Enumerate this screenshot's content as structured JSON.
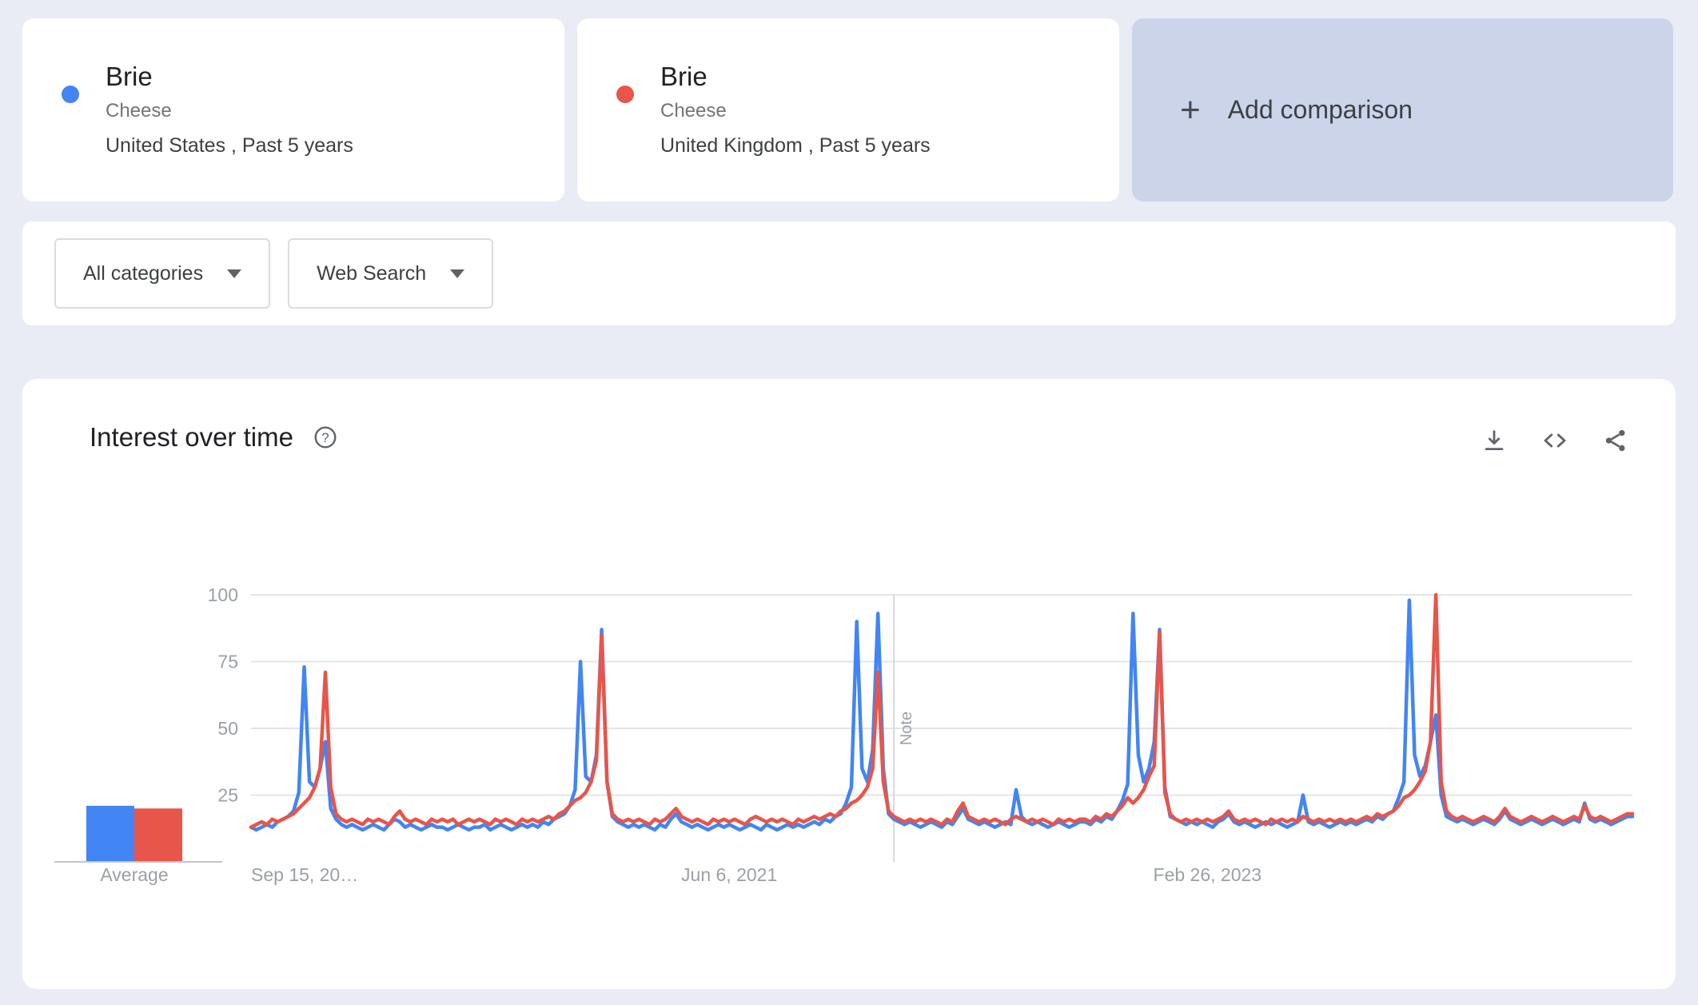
{
  "terms": [
    {
      "keyword": "Brie",
      "type": "Cheese",
      "scope": "United States , Past 5 years",
      "color": "#4285f4"
    },
    {
      "keyword": "Brie",
      "type": "Cheese",
      "scope": "United Kingdom , Past 5 years",
      "color": "#e8554a"
    }
  ],
  "add_comparison": {
    "plus": "+",
    "label": "Add comparison"
  },
  "filters": {
    "category": "All categories",
    "search_type": "Web Search"
  },
  "chart_card": {
    "title": "Interest over time",
    "icons": [
      "help-icon",
      "download-icon",
      "embed-icon",
      "share-icon"
    ]
  },
  "chart_data": {
    "type": "line",
    "title": "Interest over time",
    "x_unit": "week",
    "x_tick_labels": [
      "Sep 15, 20…",
      "Jun 6, 2021",
      "Feb 26, 2023"
    ],
    "x_tick_weeks": [
      0,
      90,
      180
    ],
    "y_ticks": [
      25,
      50,
      75,
      100
    ],
    "ylim": [
      0,
      100
    ],
    "grid": true,
    "note_week": 121,
    "note_label": "Note",
    "averages": {
      "label": "Average",
      "values": [
        {
          "name": "Brie (United States)",
          "color": "#4285f4",
          "value": 21
        },
        {
          "name": "Brie (United Kingdom)",
          "color": "#e8554a",
          "value": 20
        }
      ]
    },
    "series": [
      {
        "name": "Brie (United States)",
        "color": "#4285f4",
        "values": [
          13,
          12,
          13,
          14,
          13,
          15,
          16,
          17,
          19,
          26,
          73,
          30,
          28,
          35,
          45,
          20,
          16,
          14,
          13,
          14,
          13,
          12,
          13,
          14,
          13,
          12,
          14,
          16,
          15,
          13,
          14,
          13,
          12,
          13,
          14,
          13,
          13,
          12,
          13,
          14,
          13,
          12,
          13,
          13,
          14,
          12,
          13,
          14,
          13,
          12,
          13,
          14,
          13,
          14,
          13,
          15,
          14,
          16,
          17,
          18,
          21,
          27,
          75,
          32,
          30,
          40,
          87,
          30,
          17,
          15,
          14,
          13,
          14,
          13,
          14,
          13,
          12,
          14,
          13,
          16,
          18,
          15,
          14,
          13,
          14,
          13,
          12,
          13,
          14,
          13,
          14,
          13,
          12,
          13,
          14,
          13,
          12,
          14,
          13,
          12,
          13,
          14,
          13,
          14,
          13,
          14,
          15,
          14,
          16,
          15,
          17,
          18,
          22,
          28,
          90,
          35,
          30,
          42,
          93,
          35,
          18,
          16,
          15,
          14,
          15,
          14,
          13,
          14,
          15,
          14,
          13,
          15,
          14,
          17,
          20,
          16,
          15,
          14,
          15,
          14,
          13,
          14,
          15,
          14,
          27,
          17,
          15,
          14,
          15,
          14,
          13,
          14,
          15,
          14,
          13,
          14,
          15,
          15,
          14,
          16,
          15,
          17,
          16,
          19,
          23,
          29,
          93,
          40,
          30,
          35,
          45,
          87,
          28,
          17,
          16,
          15,
          14,
          15,
          14,
          15,
          14,
          13,
          15,
          16,
          18,
          15,
          14,
          15,
          14,
          13,
          14,
          15,
          14,
          15,
          14,
          13,
          14,
          15,
          25,
          15,
          14,
          15,
          14,
          13,
          14,
          15,
          14,
          15,
          14,
          15,
          16,
          15,
          17,
          16,
          18,
          19,
          24,
          30,
          98,
          40,
          32,
          36,
          45,
          55,
          25,
          17,
          16,
          15,
          16,
          15,
          14,
          15,
          16,
          15,
          14,
          16,
          19,
          16,
          15,
          14,
          15,
          16,
          15,
          14,
          15,
          16,
          15,
          14,
          15,
          16,
          15,
          22,
          16,
          15,
          16,
          15,
          14,
          15,
          16,
          17,
          17
        ]
      },
      {
        "name": "Brie (United Kingdom)",
        "color": "#e8554a",
        "values": [
          13,
          14,
          15,
          14,
          16,
          15,
          16,
          17,
          18,
          20,
          22,
          24,
          28,
          35,
          71,
          28,
          18,
          16,
          15,
          16,
          15,
          14,
          16,
          15,
          16,
          15,
          14,
          17,
          19,
          16,
          15,
          16,
          15,
          14,
          16,
          15,
          16,
          15,
          16,
          14,
          15,
          16,
          15,
          16,
          15,
          14,
          16,
          15,
          16,
          15,
          14,
          16,
          15,
          16,
          15,
          16,
          17,
          16,
          18,
          19,
          21,
          23,
          24,
          26,
          30,
          38,
          85,
          30,
          18,
          16,
          15,
          16,
          15,
          16,
          15,
          14,
          16,
          15,
          16,
          18,
          20,
          17,
          16,
          15,
          16,
          15,
          14,
          16,
          15,
          16,
          15,
          16,
          15,
          14,
          16,
          17,
          16,
          15,
          16,
          15,
          16,
          15,
          14,
          16,
          15,
          16,
          17,
          16,
          17,
          18,
          17,
          19,
          20,
          22,
          23,
          25,
          28,
          35,
          71,
          30,
          19,
          17,
          16,
          15,
          16,
          15,
          16,
          15,
          16,
          15,
          14,
          16,
          15,
          19,
          22,
          17,
          16,
          15,
          16,
          15,
          16,
          15,
          14,
          16,
          17,
          16,
          15,
          16,
          15,
          16,
          15,
          14,
          16,
          15,
          16,
          15,
          16,
          16,
          15,
          17,
          16,
          18,
          17,
          19,
          21,
          24,
          22,
          24,
          27,
          32,
          36,
          86,
          26,
          18,
          16,
          15,
          16,
          15,
          16,
          15,
          16,
          15,
          16,
          17,
          19,
          16,
          15,
          16,
          15,
          16,
          15,
          14,
          16,
          15,
          16,
          15,
          16,
          15,
          17,
          16,
          15,
          16,
          15,
          16,
          15,
          16,
          15,
          16,
          15,
          16,
          17,
          16,
          18,
          17,
          18,
          19,
          21,
          24,
          25,
          27,
          30,
          34,
          45,
          100,
          30,
          19,
          17,
          16,
          17,
          16,
          15,
          16,
          17,
          16,
          15,
          17,
          20,
          17,
          16,
          15,
          16,
          17,
          16,
          15,
          16,
          17,
          16,
          15,
          16,
          17,
          16,
          21,
          17,
          16,
          17,
          16,
          15,
          16,
          17,
          18,
          18
        ]
      }
    ]
  }
}
